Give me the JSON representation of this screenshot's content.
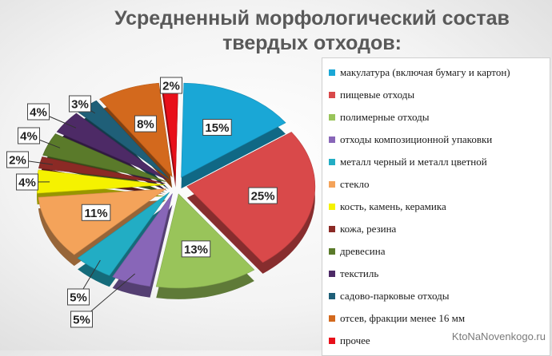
{
  "chart_data": {
    "type": "pie",
    "title": "Усредненный морфологический состав твердых отходов:",
    "categories": [
      "макулатура (включая бумагу и картон)",
      "пищевые отходы",
      "полимерные отходы",
      "отходы композиционной упаковки",
      "металл черный и металл цветной",
      "стекло",
      "кость, камень, керамика",
      "кожа, резина",
      "древесина",
      "текстиль",
      "садово-парковые отходы",
      "отсев, фракции менее 16 мм",
      "прочее"
    ],
    "values": [
      15,
      25,
      13,
      5,
      5,
      11,
      4,
      2,
      4,
      4,
      3,
      8,
      2
    ],
    "data_labels": [
      "15%",
      "25%",
      "13%",
      "5%",
      "5%",
      "11%",
      "4%",
      "2%",
      "4%",
      "4%",
      "3%",
      "8%",
      "2%"
    ],
    "colors": [
      "#1aa7d6",
      "#d9494a",
      "#99c45a",
      "#8866b8",
      "#22adc4",
      "#f4a35a",
      "#f5f200",
      "#8b2a25",
      "#5a7a2a",
      "#4d2a66",
      "#1f5f78",
      "#d3691d",
      "#e8101a"
    ],
    "legend_position": "right",
    "exploded": true
  },
  "watermark": "KtoNaNovenkogo.ru"
}
